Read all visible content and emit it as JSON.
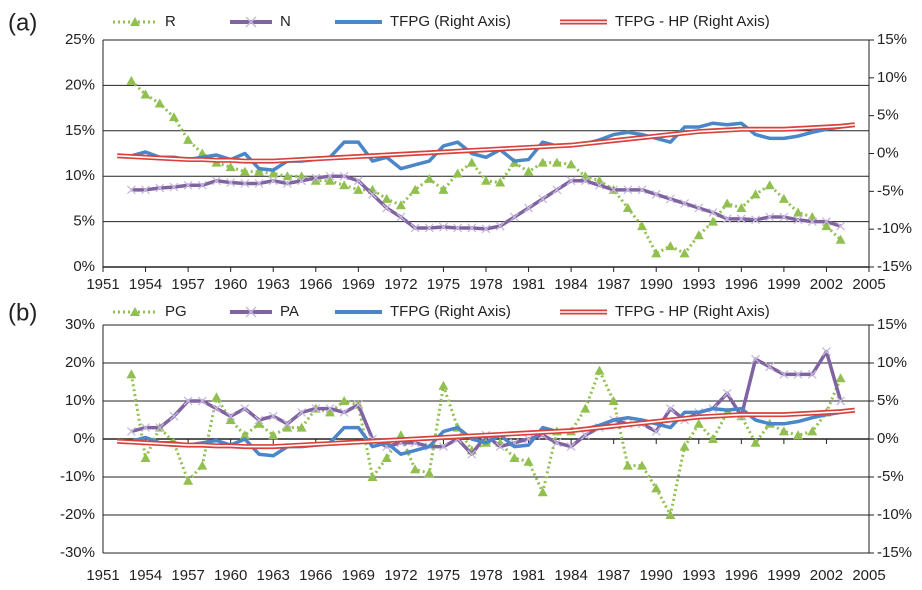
{
  "chart_data": [
    {
      "type": "line",
      "label": "(a)",
      "x": [
        1952,
        1953,
        1954,
        1955,
        1956,
        1957,
        1958,
        1959,
        1960,
        1961,
        1962,
        1963,
        1964,
        1965,
        1966,
        1967,
        1968,
        1969,
        1970,
        1971,
        1972,
        1973,
        1974,
        1975,
        1976,
        1977,
        1978,
        1979,
        1980,
        1981,
        1982,
        1983,
        1984,
        1985,
        1986,
        1987,
        1988,
        1989,
        1990,
        1991,
        1992,
        1993,
        1994,
        1995,
        1996,
        1997,
        1998,
        1999,
        2000,
        2001,
        2002,
        2003,
        2004
      ],
      "xlim": [
        1951,
        2005
      ],
      "xticks": [
        1951,
        1954,
        1957,
        1960,
        1963,
        1966,
        1969,
        1972,
        1975,
        1978,
        1981,
        1984,
        1987,
        1990,
        1993,
        1996,
        1999,
        2002,
        2005
      ],
      "ylim": [
        0,
        25
      ],
      "yticks": [
        {
          "value": 0,
          "label": "0%"
        },
        {
          "value": 5,
          "label": "5%"
        },
        {
          "value": 10,
          "label": "10%"
        },
        {
          "value": 15,
          "label": "15%"
        },
        {
          "value": 20,
          "label": "20%"
        },
        {
          "value": 25,
          "label": "25%"
        }
      ],
      "y2lim": [
        -15,
        15
      ],
      "y2ticks": [
        {
          "value": -15,
          "label": "-15%"
        },
        {
          "value": -10,
          "label": "-10%"
        },
        {
          "value": -5,
          "label": "-5%"
        },
        {
          "value": 0,
          "label": "0%"
        },
        {
          "value": 5,
          "label": "5%"
        },
        {
          "value": 10,
          "label": "10%"
        },
        {
          "value": 15,
          "label": "15%"
        }
      ],
      "grid": true,
      "series": [
        {
          "name": "R",
          "color": "#92c050",
          "dash": "dotted",
          "marker": "triangle",
          "values": [
            null,
            20.5,
            19,
            18,
            16.5,
            14,
            12.5,
            11.5,
            11,
            10.5,
            10.5,
            10.3,
            10,
            10,
            9.5,
            9.5,
            9,
            8.5,
            8.5,
            7.5,
            6.8,
            8.5,
            9.7,
            8.5,
            10.3,
            11.5,
            9.5,
            9.3,
            11.5,
            10.5,
            11.5,
            11.5,
            11.3,
            10,
            9.5,
            8.5,
            6.5,
            4.5,
            1.5,
            2.3,
            1.5,
            3.5,
            5,
            7,
            6.5,
            8,
            9,
            7.5,
            6,
            5.5,
            4.5,
            3,
            null
          ]
        },
        {
          "name": "N",
          "color": "#8064a2",
          "dash": "solid",
          "marker": "x",
          "values": [
            null,
            8.5,
            8.5,
            8.7,
            8.8,
            9,
            9,
            9.5,
            9.3,
            9.2,
            9.2,
            9.5,
            9.2,
            9.5,
            9.8,
            10,
            10,
            9.5,
            8,
            6.5,
            5.5,
            4.3,
            4.3,
            4.4,
            4.3,
            4.3,
            4.2,
            4.5,
            5.5,
            6.5,
            7.5,
            8.5,
            9.5,
            9.5,
            9,
            8.5,
            8.5,
            8.5,
            8,
            7.5,
            7,
            6.5,
            6,
            5.3,
            5.3,
            5.2,
            5.5,
            5.5,
            5.2,
            5,
            5,
            4.5,
            null
          ]
        },
        {
          "name": "TFPG (Right Axis)",
          "color": "#4a86c8",
          "dash": "solid",
          "axis": "y2",
          "values": [
            null,
            -0.3,
            0.2,
            -0.5,
            -0.5,
            -0.8,
            -0.5,
            -0.2,
            -0.8,
            0,
            -2,
            -2.2,
            -1,
            -1,
            -0.8,
            -0.5,
            1.5,
            1.5,
            -1,
            -0.5,
            -2,
            -1.5,
            -1,
            1,
            1.5,
            0,
            -0.5,
            0.5,
            -1,
            -0.8,
            1.5,
            1,
            1,
            1.3,
            1.8,
            2.5,
            2.8,
            2.5,
            2,
            1.5,
            3.5,
            3.5,
            4,
            3.8,
            4,
            2.5,
            2,
            2,
            2.3,
            2.8,
            3.2,
            3.5,
            null
          ]
        },
        {
          "name": "TFPG - HP (Right Axis)",
          "color": "#d9413c",
          "dash": "double",
          "axis": "y2",
          "values": [
            -0.3,
            -0.4,
            -0.5,
            -0.6,
            -0.7,
            -0.8,
            -0.8,
            -0.9,
            -0.9,
            -1,
            -1,
            -1,
            -0.9,
            -0.8,
            -0.7,
            -0.6,
            -0.5,
            -0.4,
            -0.3,
            -0.2,
            -0.1,
            0,
            0.1,
            0.2,
            0.3,
            0.4,
            0.5,
            0.6,
            0.7,
            0.8,
            0.9,
            1.0,
            1.1,
            1.3,
            1.5,
            1.7,
            1.9,
            2.1,
            2.3,
            2.5,
            2.7,
            2.9,
            3.0,
            3.1,
            3.2,
            3.2,
            3.2,
            3.2,
            3.3,
            3.4,
            3.5,
            3.6,
            3.8
          ]
        }
      ]
    },
    {
      "type": "line",
      "label": "(b)",
      "x": [
        1952,
        1953,
        1954,
        1955,
        1956,
        1957,
        1958,
        1959,
        1960,
        1961,
        1962,
        1963,
        1964,
        1965,
        1966,
        1967,
        1968,
        1969,
        1970,
        1971,
        1972,
        1973,
        1974,
        1975,
        1976,
        1977,
        1978,
        1979,
        1980,
        1981,
        1982,
        1983,
        1984,
        1985,
        1986,
        1987,
        1988,
        1989,
        1990,
        1991,
        1992,
        1993,
        1994,
        1995,
        1996,
        1997,
        1998,
        1999,
        2000,
        2001,
        2002,
        2003,
        2004
      ],
      "xlim": [
        1951,
        2005
      ],
      "xticks": [
        1951,
        1954,
        1957,
        1960,
        1963,
        1966,
        1969,
        1972,
        1975,
        1978,
        1981,
        1984,
        1987,
        1990,
        1993,
        1996,
        1999,
        2002,
        2005
      ],
      "ylim": [
        -30,
        30
      ],
      "yticks": [
        {
          "value": -30,
          "label": "-30%"
        },
        {
          "value": -20,
          "label": "-20%"
        },
        {
          "value": -10,
          "label": "-10%"
        },
        {
          "value": 0,
          "label": "0%"
        },
        {
          "value": 10,
          "label": "10%"
        },
        {
          "value": 20,
          "label": "20%"
        },
        {
          "value": 30,
          "label": "30%"
        }
      ],
      "y2lim": [
        -15,
        15
      ],
      "y2ticks": [
        {
          "value": -15,
          "label": "-15%"
        },
        {
          "value": -10,
          "label": "-10%"
        },
        {
          "value": -5,
          "label": "-5%"
        },
        {
          "value": 0,
          "label": "0%"
        },
        {
          "value": 5,
          "label": "5%"
        },
        {
          "value": 10,
          "label": "10%"
        },
        {
          "value": 15,
          "label": "15%"
        }
      ],
      "grid": true,
      "series": [
        {
          "name": "PG",
          "color": "#92c050",
          "dash": "dotted",
          "marker": "triangle",
          "values": [
            null,
            17,
            -5,
            3,
            -1,
            -11,
            -7,
            11,
            5,
            1,
            4,
            1,
            3,
            3,
            8,
            7,
            10,
            9,
            -10,
            -5,
            1,
            -8,
            -9,
            14,
            3,
            -3,
            -1,
            -1,
            -5,
            -6,
            -14,
            2,
            2,
            8,
            18,
            10,
            -7,
            -7,
            -13,
            -20,
            -2,
            4,
            0,
            7,
            6,
            -1,
            4,
            2,
            1,
            2,
            7,
            16,
            null
          ]
        },
        {
          "name": "PA",
          "color": "#8064a2",
          "dash": "solid",
          "marker": "x",
          "values": [
            null,
            2,
            3,
            3,
            6,
            10,
            10,
            8,
            6,
            8,
            5,
            6,
            4,
            7,
            8,
            8,
            7,
            9,
            0,
            -2,
            -1,
            -1,
            -2,
            -2,
            0,
            -4,
            1,
            -2,
            -1,
            0,
            1,
            -1,
            -2,
            1,
            3,
            5,
            4,
            4,
            2,
            8,
            5,
            7,
            8,
            12,
            6,
            21,
            19,
            17,
            17,
            17,
            23,
            10,
            null
          ]
        },
        {
          "name": "TFPG (Right Axis)",
          "color": "#4a86c8",
          "dash": "solid",
          "axis": "y2",
          "values": [
            null,
            -0.3,
            0.2,
            -0.5,
            -0.5,
            -0.8,
            -0.5,
            -0.2,
            -0.8,
            0,
            -2,
            -2.2,
            -1,
            -1,
            -0.8,
            -0.5,
            1.5,
            1.5,
            -1,
            -0.5,
            -2,
            -1.5,
            -1,
            1,
            1.5,
            0,
            -0.5,
            0.5,
            -1,
            -0.8,
            1.5,
            1,
            1,
            1.3,
            1.8,
            2.5,
            2.8,
            2.5,
            2,
            1.5,
            3.5,
            3.5,
            4,
            3.8,
            4,
            2.5,
            2,
            2,
            2.3,
            2.8,
            3.2,
            3.5,
            null
          ]
        },
        {
          "name": "TFPG - HP (Right Axis)",
          "color": "#d9413c",
          "dash": "double",
          "axis": "y2",
          "values": [
            -0.3,
            -0.4,
            -0.5,
            -0.6,
            -0.7,
            -0.8,
            -0.8,
            -0.9,
            -0.9,
            -1,
            -1,
            -1,
            -0.9,
            -0.8,
            -0.7,
            -0.6,
            -0.5,
            -0.4,
            -0.3,
            -0.2,
            -0.1,
            0,
            0.1,
            0.2,
            0.3,
            0.4,
            0.5,
            0.6,
            0.7,
            0.8,
            0.9,
            1.0,
            1.1,
            1.3,
            1.5,
            1.7,
            1.9,
            2.1,
            2.3,
            2.5,
            2.7,
            2.9,
            3.0,
            3.1,
            3.2,
            3.2,
            3.2,
            3.2,
            3.3,
            3.4,
            3.5,
            3.6,
            3.8
          ]
        }
      ]
    }
  ]
}
